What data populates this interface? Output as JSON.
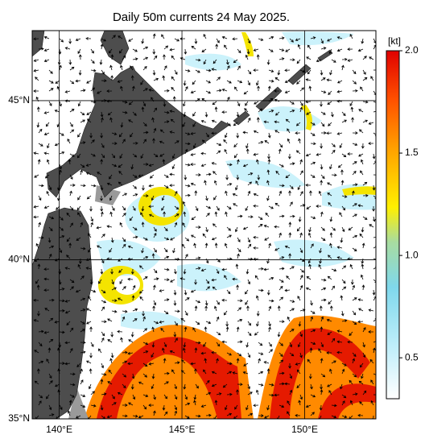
{
  "title": "Daily 50m currents 24 May 2025.",
  "lonlim": [
    138.9,
    152.9
  ],
  "latlim": [
    35,
    47.2
  ],
  "lon_ticks": [
    {
      "value": 140,
      "label": "140°E"
    },
    {
      "value": 145,
      "label": "145°E"
    },
    {
      "value": 150,
      "label": "150°E"
    }
  ],
  "lat_ticks": [
    {
      "value": 35,
      "label": "35°N"
    },
    {
      "value": 40,
      "label": "40°N"
    },
    {
      "value": 45,
      "label": "45°N"
    }
  ],
  "colorbar": {
    "unit": "[kt]",
    "lim": [
      0.3,
      2.0
    ],
    "ticks": [
      0.5,
      {
        "value": 1.0,
        "label": "1.0"
      },
      1.5,
      {
        "value": 2.0,
        "label": "2.0"
      }
    ]
  }
}
